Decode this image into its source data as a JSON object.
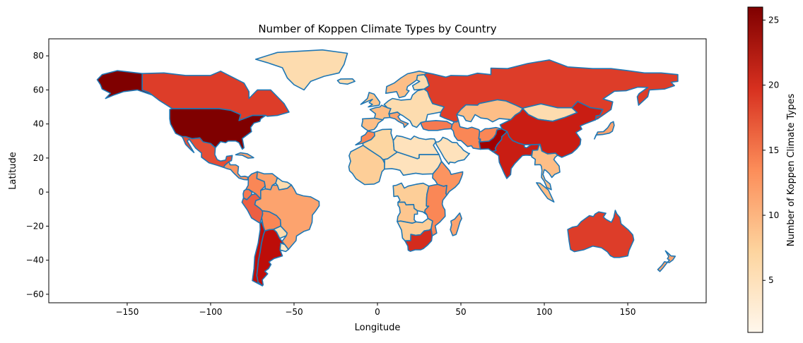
{
  "chart_data": {
    "type": "heatmap",
    "subtype": "choropleth-map",
    "title": "Number of Koppen Climate Types by Country",
    "xlabel": "Longitude",
    "ylabel": "Latitude",
    "xlim": [
      -197,
      197
    ],
    "ylim": [
      -65,
      90
    ],
    "x_ticks": [
      -150,
      -100,
      -50,
      0,
      50,
      100,
      150
    ],
    "y_ticks": [
      -60,
      -40,
      -20,
      0,
      20,
      40,
      60,
      80
    ],
    "colorbar": {
      "label": "Number of Koppen Climate Types",
      "colormap": "OrRd",
      "vmin": 1,
      "vmax": 26,
      "ticks": [
        5,
        10,
        15,
        20,
        25
      ]
    },
    "border_color": "#1f77b4",
    "regions": [
      {
        "name": "Alaska (USA)",
        "value": 26
      },
      {
        "name": "Canada",
        "value": 19
      },
      {
        "name": "Greenland",
        "value": 6
      },
      {
        "name": "United States",
        "value": 26
      },
      {
        "name": "Mexico",
        "value": 18
      },
      {
        "name": "Central America",
        "value": 13
      },
      {
        "name": "Cuba",
        "value": 12
      },
      {
        "name": "Colombia",
        "value": 14
      },
      {
        "name": "Venezuela",
        "value": 12
      },
      {
        "name": "Guianas",
        "value": 6
      },
      {
        "name": "Ecuador",
        "value": 15
      },
      {
        "name": "Peru",
        "value": 17
      },
      {
        "name": "Brazil",
        "value": 12
      },
      {
        "name": "Bolivia",
        "value": 14
      },
      {
        "name": "Paraguay",
        "value": 6
      },
      {
        "name": "Chile",
        "value": 22
      },
      {
        "name": "Argentina",
        "value": 22
      },
      {
        "name": "Uruguay",
        "value": 4
      },
      {
        "name": "Iceland",
        "value": 6
      },
      {
        "name": "Norway / Sweden",
        "value": 10
      },
      {
        "name": "Finland",
        "value": 6
      },
      {
        "name": "Western Europe",
        "value": 9
      },
      {
        "name": "France",
        "value": 10
      },
      {
        "name": "Spain / Portugal",
        "value": 10
      },
      {
        "name": "Italy",
        "value": 12
      },
      {
        "name": "Eastern Europe",
        "value": 6
      },
      {
        "name": "Russia",
        "value": 19
      },
      {
        "name": "Kazakhstan",
        "value": 10
      },
      {
        "name": "Mongolia",
        "value": 6
      },
      {
        "name": "China",
        "value": 21
      },
      {
        "name": "Turkey",
        "value": 15
      },
      {
        "name": "Iran",
        "value": 14
      },
      {
        "name": "Afghanistan",
        "value": 14
      },
      {
        "name": "Pakistan",
        "value": 24
      },
      {
        "name": "India",
        "value": 21
      },
      {
        "name": "Southeast Asia",
        "value": 10
      },
      {
        "name": "Indonesia",
        "value": 10
      },
      {
        "name": "Japan",
        "value": 12
      },
      {
        "name": "Saudi Arabia",
        "value": 5
      },
      {
        "name": "Morocco",
        "value": 14
      },
      {
        "name": "Algeria",
        "value": 7
      },
      {
        "name": "Libya / Egypt",
        "value": 5
      },
      {
        "name": "West Africa",
        "value": 8
      },
      {
        "name": "Sahel",
        "value": 5
      },
      {
        "name": "Ethiopia",
        "value": 13
      },
      {
        "name": "DR Congo",
        "value": 8
      },
      {
        "name": "East Africa",
        "value": 14
      },
      {
        "name": "Angola",
        "value": 9
      },
      {
        "name": "Southern Africa",
        "value": 8
      },
      {
        "name": "South Africa",
        "value": 20
      },
      {
        "name": "Madagascar",
        "value": 12
      },
      {
        "name": "Australia",
        "value": 19
      },
      {
        "name": "New Zealand",
        "value": 12
      }
    ]
  }
}
